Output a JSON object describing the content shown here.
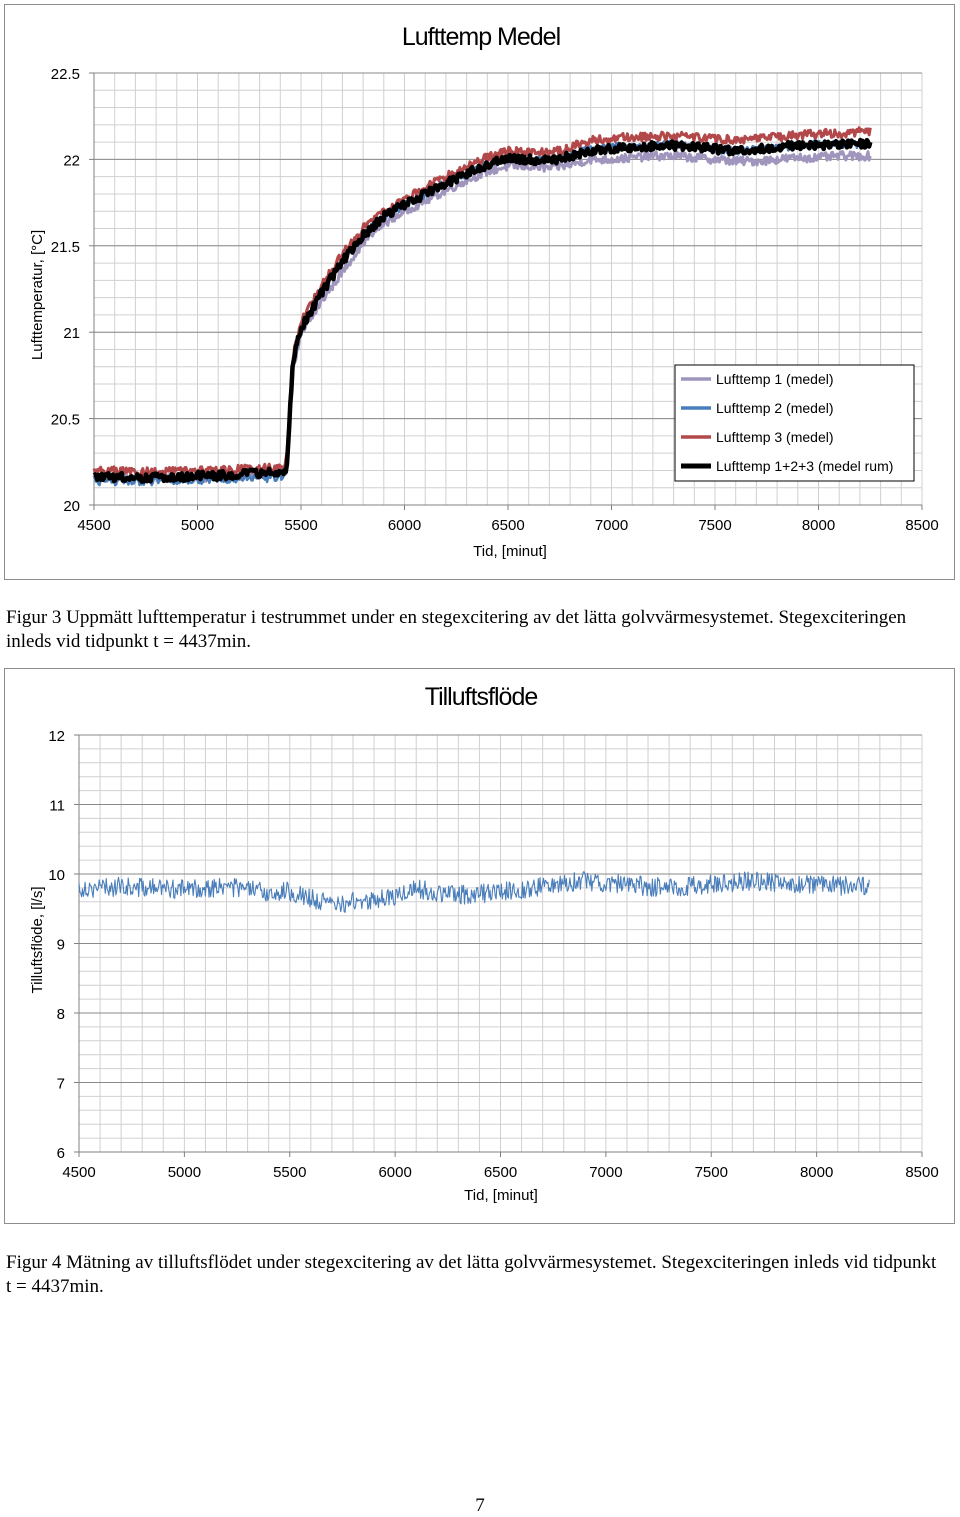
{
  "page": {
    "caption1": "Figur 3 Uppmätt lufttemperatur i testrummet under en stegexcitering av det lätta golvvärmesystemet. Stegexciteringen inleds vid tidpunkt t = 4437min.",
    "caption2": "Figur 4 Mätning av tilluftsflödet under stegexcitering av det lätta golvvärmesystemet. Stegexciteringen inleds vid tidpunkt t = 4437min.",
    "page_number": "7"
  },
  "chart_data": [
    {
      "type": "line",
      "title": "Lufttemp Medel",
      "xlabel": "Tid, [minut]",
      "ylabel": "Lufttemperatur, [°C]",
      "xlim": [
        4500,
        8500
      ],
      "ylim": [
        20,
        22.5
      ],
      "x_ticks": [
        4500,
        5000,
        5500,
        6000,
        6500,
        7000,
        7500,
        8000,
        8500
      ],
      "y_ticks": [
        20,
        20.5,
        21,
        21.5,
        22,
        22.5
      ],
      "grid": true,
      "legend_position": "bottom-right",
      "x": [
        4500,
        4800,
        5100,
        5400,
        5430,
        5460,
        5500,
        5600,
        5700,
        5800,
        5900,
        6000,
        6100,
        6200,
        6300,
        6400,
        6500,
        6600,
        6700,
        6800,
        6900,
        7000,
        7100,
        7200,
        7300,
        7400,
        7500,
        7600,
        7700,
        7800,
        7900,
        8000,
        8100,
        8200,
        8250
      ],
      "series": [
        {
          "name": "Lufttemp 1 (medel)",
          "color": "#a095bd",
          "values": [
            20.16,
            20.16,
            20.16,
            20.18,
            20.2,
            20.78,
            20.98,
            21.18,
            21.35,
            21.52,
            21.63,
            21.7,
            21.76,
            21.82,
            21.88,
            21.93,
            21.96,
            21.96,
            21.95,
            21.97,
            22.0,
            22.0,
            22.01,
            22.02,
            22.02,
            22.01,
            22.0,
            21.99,
            21.99,
            22.0,
            22.01,
            22.01,
            22.02,
            22.02,
            22.02
          ]
        },
        {
          "name": "Lufttemp 2 (medel)",
          "color": "#4a7ebb",
          "values": [
            20.14,
            20.14,
            20.15,
            20.16,
            20.19,
            20.82,
            21.03,
            21.24,
            21.42,
            21.57,
            21.67,
            21.74,
            21.8,
            21.86,
            21.92,
            21.97,
            22.01,
            22.0,
            22.0,
            22.03,
            22.06,
            22.07,
            22.08,
            22.08,
            22.09,
            22.08,
            22.06,
            22.05,
            22.06,
            22.07,
            22.08,
            22.09,
            22.09,
            22.09,
            22.09
          ]
        },
        {
          "name": "Lufttemp 3 (medel)",
          "color": "#b2484a",
          "values": [
            20.2,
            20.19,
            20.2,
            20.22,
            20.25,
            20.86,
            21.06,
            21.27,
            21.45,
            21.6,
            21.7,
            21.77,
            21.84,
            21.9,
            21.96,
            22.01,
            22.05,
            22.04,
            22.04,
            22.07,
            22.11,
            22.12,
            22.13,
            22.13,
            22.14,
            22.13,
            22.12,
            22.11,
            22.12,
            22.13,
            22.14,
            22.15,
            22.15,
            22.16,
            22.16
          ]
        },
        {
          "name": "Lufttemp 1+2+3 (medel rum)",
          "color": "#000000",
          "values": [
            20.16,
            20.16,
            20.17,
            20.19,
            20.21,
            20.82,
            21.02,
            21.23,
            21.41,
            21.56,
            21.67,
            21.74,
            21.8,
            21.86,
            21.92,
            21.97,
            22.01,
            22.0,
            21.99,
            22.02,
            22.05,
            22.06,
            22.07,
            22.08,
            22.08,
            22.07,
            22.06,
            22.05,
            22.06,
            22.07,
            22.08,
            22.08,
            22.09,
            22.09,
            22.09
          ]
        }
      ]
    },
    {
      "type": "line",
      "title": "Tilluftsflöde",
      "xlabel": "Tid, [minut]",
      "ylabel": "Tilluftsflöde, [l/s]",
      "xlim": [
        4500,
        8500
      ],
      "ylim": [
        6,
        12
      ],
      "x_ticks": [
        4500,
        5000,
        5500,
        6000,
        6500,
        7000,
        7500,
        8000,
        8500
      ],
      "y_ticks": [
        6,
        7,
        8,
        9,
        10,
        11,
        12
      ],
      "grid": true,
      "x": [
        4500,
        4600,
        4700,
        4800,
        4900,
        5000,
        5100,
        5200,
        5300,
        5400,
        5500,
        5600,
        5700,
        5800,
        5900,
        6000,
        6100,
        6200,
        6300,
        6400,
        6500,
        6600,
        6700,
        6800,
        6900,
        7000,
        7100,
        7200,
        7300,
        7400,
        7500,
        7600,
        7700,
        7800,
        7900,
        8000,
        8100,
        8200,
        8250
      ],
      "series": [
        {
          "name": "",
          "color": "#4a7ebb",
          "values": [
            9.8,
            9.8,
            9.82,
            9.8,
            9.8,
            9.78,
            9.8,
            9.82,
            9.78,
            9.72,
            9.75,
            9.65,
            9.55,
            9.6,
            9.62,
            9.68,
            9.8,
            9.72,
            9.7,
            9.72,
            9.75,
            9.78,
            9.82,
            9.88,
            9.9,
            9.88,
            9.85,
            9.82,
            9.8,
            9.82,
            9.85,
            9.88,
            9.9,
            9.88,
            9.86,
            9.84,
            9.83,
            9.82,
            9.82
          ]
        }
      ]
    }
  ]
}
